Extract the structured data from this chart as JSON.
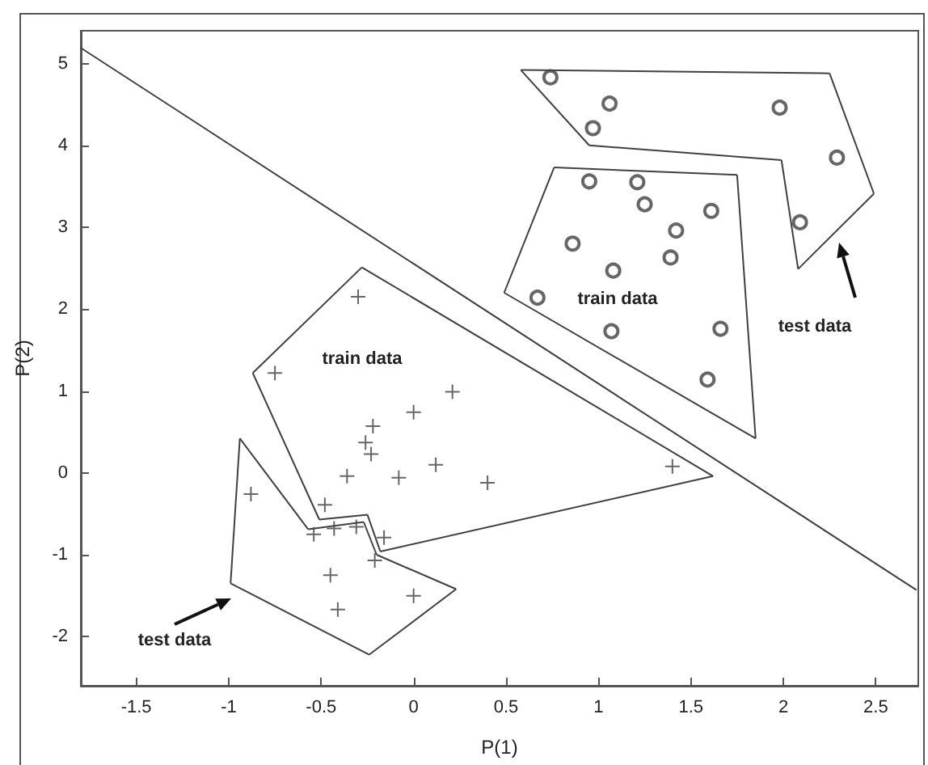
{
  "chart_data": {
    "type": "scatter",
    "xlabel": "P(1)",
    "ylabel": "P(2)",
    "xlim": [
      -1.8,
      2.73
    ],
    "ylim": [
      -2.6,
      5.4
    ],
    "xticks": [
      -1.5,
      -1,
      -0.5,
      0,
      0.5,
      1,
      1.5,
      2,
      2.5
    ],
    "yticks": [
      -2,
      -1,
      0,
      1,
      2,
      3,
      4,
      5
    ],
    "annotations": [
      "train data",
      "test data",
      "train data",
      "test data"
    ],
    "series": [
      {
        "marker": "cross",
        "color": "#404040",
        "x": [
          -0.3,
          -0.75,
          0.21,
          0.0,
          -0.22,
          -0.26,
          -0.23,
          -0.36,
          -0.08,
          0.12,
          0.4,
          1.4,
          -0.88,
          -0.48,
          -0.54,
          -0.43,
          -0.31,
          -0.16,
          -0.21,
          -0.45,
          -0.41,
          0.0
        ],
        "values": [
          2.15,
          1.22,
          0.99,
          0.74,
          0.57,
          0.37,
          0.23,
          -0.04,
          -0.06,
          0.1,
          -0.12,
          0.08,
          -0.26,
          -0.39,
          -0.75,
          -0.68,
          -0.66,
          -0.79,
          -1.07,
          -1.25,
          -1.67,
          -1.5
        ]
      },
      {
        "marker": "circle",
        "color": "#404040",
        "x": [
          0.74,
          1.06,
          0.97,
          1.98,
          2.29,
          2.09,
          0.95,
          1.21,
          1.25,
          1.61,
          1.42,
          0.86,
          1.39,
          1.08,
          0.67,
          1.07,
          1.66,
          1.59
        ],
        "values": [
          4.83,
          4.51,
          4.21,
          4.46,
          3.85,
          3.06,
          3.56,
          3.55,
          3.28,
          3.2,
          2.96,
          2.8,
          2.63,
          2.47,
          2.14,
          1.73,
          1.76,
          1.14
        ]
      },
      {
        "type": "line",
        "marker": "none",
        "color": "#404040",
        "x": [
          -1.8,
          2.72
        ],
        "values": [
          5.19,
          -1.43
        ]
      },
      {
        "type": "line",
        "marker": "none",
        "color": "#404040",
        "x": [
          -0.28,
          -0.87
        ],
        "values": [
          2.51,
          1.22
        ]
      },
      {
        "type": "line",
        "marker": "none",
        "color": "#404040",
        "x": [
          -0.87,
          -0.51
        ],
        "values": [
          1.22,
          -0.57
        ]
      },
      {
        "type": "line",
        "marker": "none",
        "color": "#404040",
        "x": [
          -0.51,
          -0.25
        ],
        "values": [
          -0.57,
          -0.51
        ]
      },
      {
        "type": "line",
        "marker": "none",
        "color": "#404040",
        "x": [
          -0.25,
          -0.18
        ],
        "values": [
          -0.51,
          -0.96
        ]
      },
      {
        "type": "line",
        "marker": "none",
        "color": "#404040",
        "x": [
          -0.18,
          1.62
        ],
        "values": [
          -0.96,
          -0.04
        ]
      },
      {
        "type": "line",
        "marker": "none",
        "color": "#404040",
        "x": [
          1.62,
          -0.28
        ],
        "values": [
          -0.04,
          2.51
        ]
      },
      {
        "type": "line",
        "marker": "none",
        "color": "#404040",
        "x": [
          -0.94,
          -0.57
        ],
        "values": [
          0.42,
          -0.69
        ]
      },
      {
        "type": "line",
        "marker": "none",
        "color": "#404040",
        "x": [
          -0.57,
          -0.27
        ],
        "values": [
          -0.69,
          -0.6
        ]
      },
      {
        "type": "line",
        "marker": "none",
        "color": "#404040",
        "x": [
          -0.27,
          -0.2
        ],
        "values": [
          -0.6,
          -1.0
        ]
      },
      {
        "type": "line",
        "marker": "none",
        "color": "#404040",
        "x": [
          -0.2,
          0.23
        ],
        "values": [
          -1.0,
          -1.42
        ]
      },
      {
        "type": "line",
        "marker": "none",
        "color": "#404040",
        "x": [
          0.23,
          -0.24
        ],
        "values": [
          -1.42,
          -2.22
        ]
      },
      {
        "type": "line",
        "marker": "none",
        "color": "#404040",
        "x": [
          -0.24,
          -0.99
        ],
        "values": [
          -2.22,
          -1.35
        ]
      },
      {
        "type": "line",
        "marker": "none",
        "color": "#404040",
        "x": [
          -0.99,
          -0.94
        ],
        "values": [
          -1.35,
          0.42
        ]
      },
      {
        "type": "line",
        "marker": "none",
        "color": "#404040",
        "x": [
          0.58,
          2.25
        ],
        "values": [
          4.92,
          4.88
        ]
      },
      {
        "type": "line",
        "marker": "none",
        "color": "#404040",
        "x": [
          2.25,
          2.49
        ],
        "values": [
          4.88,
          3.41
        ]
      },
      {
        "type": "line",
        "marker": "none",
        "color": "#404040",
        "x": [
          2.49,
          2.08
        ],
        "values": [
          3.41,
          2.49
        ]
      },
      {
        "type": "line",
        "marker": "none",
        "color": "#404040",
        "x": [
          2.08,
          1.99
        ],
        "values": [
          2.49,
          3.82
        ]
      },
      {
        "type": "line",
        "marker": "none",
        "color": "#404040",
        "x": [
          1.99,
          0.95
        ],
        "values": [
          3.82,
          4.0
        ]
      },
      {
        "type": "line",
        "marker": "none",
        "color": "#404040",
        "x": [
          0.95,
          0.58
        ],
        "values": [
          4.0,
          4.92
        ]
      },
      {
        "type": "line",
        "marker": "none",
        "color": "#404040",
        "x": [
          0.76,
          1.75
        ],
        "values": [
          3.73,
          3.64
        ]
      },
      {
        "type": "line",
        "marker": "none",
        "color": "#404040",
        "x": [
          1.75,
          1.85
        ],
        "values": [
          3.64,
          0.42
        ]
      },
      {
        "type": "line",
        "marker": "none",
        "color": "#404040",
        "x": [
          1.85,
          0.49
        ],
        "values": [
          0.42,
          2.2
        ]
      },
      {
        "type": "line",
        "marker": "none",
        "color": "#404040",
        "x": [
          0.49,
          0.76
        ],
        "values": [
          2.2,
          3.73
        ]
      }
    ]
  }
}
